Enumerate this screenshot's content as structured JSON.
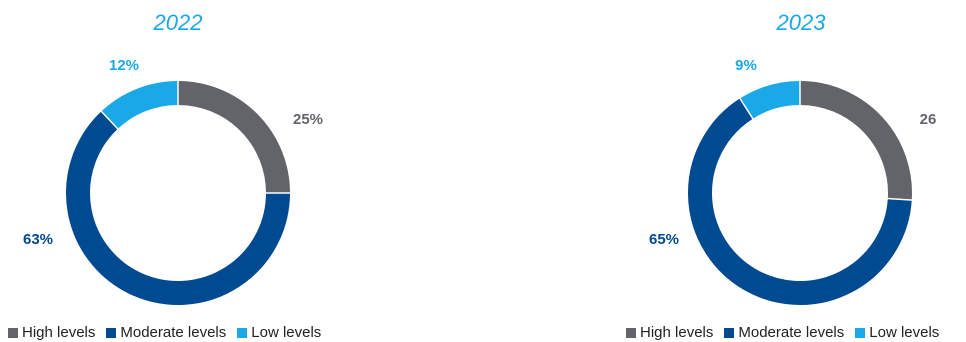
{
  "chart_data": [
    {
      "type": "pie",
      "title": "2022",
      "categories": [
        "High levels",
        "Moderate levels",
        "Low levels"
      ],
      "values": [
        25,
        63,
        12
      ],
      "data_labels": [
        "25%",
        "63%",
        "12%"
      ],
      "colors": [
        "#636469",
        "#004a92",
        "#1ba8e6"
      ],
      "legend": "bottom"
    },
    {
      "type": "pie",
      "title": "2023",
      "categories": [
        "High levels",
        "Moderate levels",
        "Low levels"
      ],
      "values": [
        26,
        65,
        9
      ],
      "data_labels": [
        "26",
        "65%",
        "9%"
      ],
      "colors": [
        "#636469",
        "#004a92",
        "#1ba8e6"
      ],
      "legend": "bottom"
    }
  ]
}
